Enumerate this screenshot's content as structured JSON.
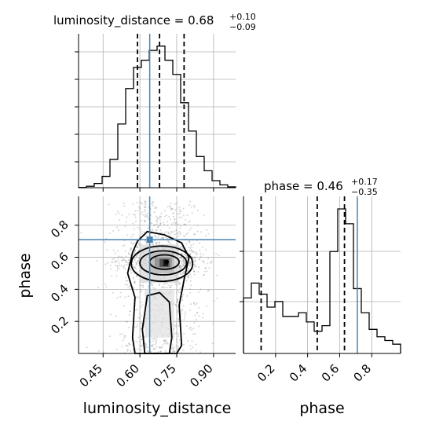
{
  "chart_data": [
    {
      "type": "histogram",
      "panel": "luminosity_distance marginal",
      "title": {
        "param": "luminosity_distance",
        "median": "0.68",
        "plus": "+0.10",
        "minus": "−0.09"
      },
      "xlim": [
        0.35,
        0.99
      ],
      "x_edges": [
        0.35,
        0.382,
        0.414,
        0.446,
        0.478,
        0.51,
        0.542,
        0.574,
        0.606,
        0.638,
        0.67,
        0.702,
        0.734,
        0.766,
        0.798,
        0.83,
        0.862,
        0.894,
        0.926,
        0.958,
        0.99
      ],
      "density": [
        0.002,
        0.01,
        0.03,
        0.08,
        0.2,
        0.45,
        0.7,
        0.85,
        0.9,
        0.97,
        1.0,
        0.9,
        0.8,
        0.6,
        0.4,
        0.22,
        0.12,
        0.05,
        0.02,
        0.006
      ],
      "quantiles": [
        0.59,
        0.68,
        0.78
      ],
      "truth": 0.64,
      "xticks": [
        "0.45",
        "0.60",
        "0.75",
        "0.90"
      ],
      "show_xticklabels": false
    },
    {
      "type": "histogram",
      "panel": "phase marginal",
      "title": {
        "param": "phase",
        "median": "0.46",
        "plus": "+0.17",
        "minus": "−0.35"
      },
      "xlim": [
        0.0,
        0.98
      ],
      "x_edges": [
        0.0,
        0.049,
        0.098,
        0.147,
        0.196,
        0.245,
        0.294,
        0.343,
        0.392,
        0.441,
        0.49,
        0.539,
        0.588,
        0.637,
        0.686,
        0.735,
        0.784,
        0.833,
        0.882,
        0.931,
        0.98
      ],
      "density": [
        0.3,
        0.38,
        0.32,
        0.25,
        0.28,
        0.2,
        0.2,
        0.22,
        0.17,
        0.12,
        0.15,
        0.55,
        0.78,
        0.7,
        0.35,
        0.22,
        0.13,
        0.09,
        0.07,
        0.05
      ],
      "quantiles": [
        0.11,
        0.46,
        0.63
      ],
      "truth": 0.71,
      "xticks": [
        "0.2",
        "0.4",
        "0.6",
        "0.8"
      ],
      "xlabel": "phase"
    },
    {
      "type": "scatter",
      "panel": "2D joint (luminosity_distance vs phase)",
      "xlim": [
        0.35,
        0.99
      ],
      "ylim": [
        0.0,
        0.98
      ],
      "truth": {
        "x": 0.64,
        "y": 0.71
      },
      "mode": {
        "x": 0.71,
        "y": 0.57
      },
      "contour_levels": 4,
      "xticks": [
        "0.45",
        "0.60",
        "0.75",
        "0.90"
      ],
      "yticks": [
        "0.2",
        "0.4",
        "0.6",
        "0.8"
      ],
      "xlabel": "luminosity_distance",
      "ylabel": "phase"
    }
  ],
  "colors": {
    "truth": "#4682b4",
    "line": "#000000",
    "grid": "#b0b0b0",
    "scatter": "#888888"
  }
}
